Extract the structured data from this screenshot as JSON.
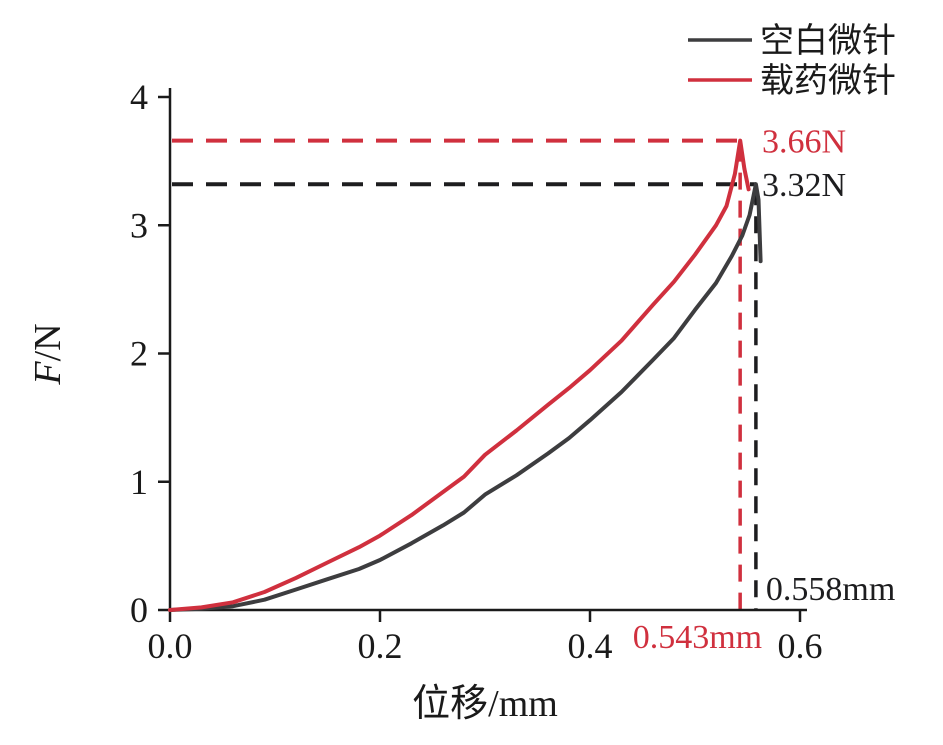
{
  "chart_data": {
    "type": "line",
    "title": "",
    "xlabel": "位移/mm",
    "ylabel": "F/N",
    "xlim": [
      0,
      0.6
    ],
    "ylim": [
      0,
      4
    ],
    "grid": false,
    "x_ticks": [
      0,
      0.2,
      0.4,
      0.6
    ],
    "x_tick_labels": [
      "0.0",
      "0.2",
      "0.4",
      "0.6"
    ],
    "y_ticks": [
      0,
      1,
      2,
      3,
      4
    ],
    "y_tick_labels": [
      "0",
      "1",
      "2",
      "3",
      "4"
    ],
    "legend": {
      "position": "top-right",
      "entries": [
        {
          "label": "空白微针",
          "color": "#3d3d3f"
        },
        {
          "label": "载药微针",
          "color": "#d0303e"
        }
      ]
    },
    "series": [
      {
        "id": "blank-microneedle",
        "name": "空白微针",
        "color": "#3d3d3f",
        "points": [
          [
            0,
            0
          ],
          [
            0.03,
            0.01
          ],
          [
            0.06,
            0.03
          ],
          [
            0.09,
            0.08
          ],
          [
            0.12,
            0.16
          ],
          [
            0.15,
            0.24
          ],
          [
            0.18,
            0.32
          ],
          [
            0.2,
            0.39
          ],
          [
            0.23,
            0.52
          ],
          [
            0.26,
            0.66
          ],
          [
            0.28,
            0.76
          ],
          [
            0.3,
            0.9
          ],
          [
            0.33,
            1.05
          ],
          [
            0.36,
            1.22
          ],
          [
            0.38,
            1.34
          ],
          [
            0.4,
            1.48
          ],
          [
            0.43,
            1.7
          ],
          [
            0.46,
            1.95
          ],
          [
            0.48,
            2.12
          ],
          [
            0.5,
            2.34
          ],
          [
            0.52,
            2.55
          ],
          [
            0.535,
            2.76
          ],
          [
            0.545,
            2.92
          ],
          [
            0.552,
            3.08
          ],
          [
            0.558,
            3.32
          ],
          [
            0.5605,
            3.2
          ],
          [
            0.5625,
            2.72
          ]
        ]
      },
      {
        "id": "drug-loaded-microneedle",
        "name": "载药微针",
        "color": "#d0303e",
        "points": [
          [
            0,
            0
          ],
          [
            0.03,
            0.02
          ],
          [
            0.06,
            0.06
          ],
          [
            0.09,
            0.14
          ],
          [
            0.12,
            0.25
          ],
          [
            0.15,
            0.37
          ],
          [
            0.18,
            0.49
          ],
          [
            0.2,
            0.58
          ],
          [
            0.23,
            0.74
          ],
          [
            0.26,
            0.92
          ],
          [
            0.28,
            1.04
          ],
          [
            0.3,
            1.21
          ],
          [
            0.33,
            1.4
          ],
          [
            0.36,
            1.6
          ],
          [
            0.38,
            1.73
          ],
          [
            0.4,
            1.87
          ],
          [
            0.43,
            2.1
          ],
          [
            0.46,
            2.38
          ],
          [
            0.48,
            2.56
          ],
          [
            0.5,
            2.77
          ],
          [
            0.52,
            3.0
          ],
          [
            0.53,
            3.15
          ],
          [
            0.538,
            3.4
          ],
          [
            0.543,
            3.66
          ],
          [
            0.547,
            3.44
          ],
          [
            0.551,
            3.28
          ]
        ]
      }
    ],
    "annotations": [
      {
        "id": "drug-loaded-microneedle",
        "series": "载药微针",
        "x": 0.543,
        "y": 3.66,
        "force_label": "3.66N",
        "disp_label": "0.543mm",
        "color": "#d0303e",
        "disp_label_placement": "below-axis"
      },
      {
        "id": "blank-microneedle",
        "series": "空白微针",
        "x": 0.558,
        "y": 3.32,
        "force_label": "3.32N",
        "disp_label": "0.558mm",
        "color": "#1d1d1f",
        "disp_label_placement": "above-axis"
      }
    ]
  }
}
